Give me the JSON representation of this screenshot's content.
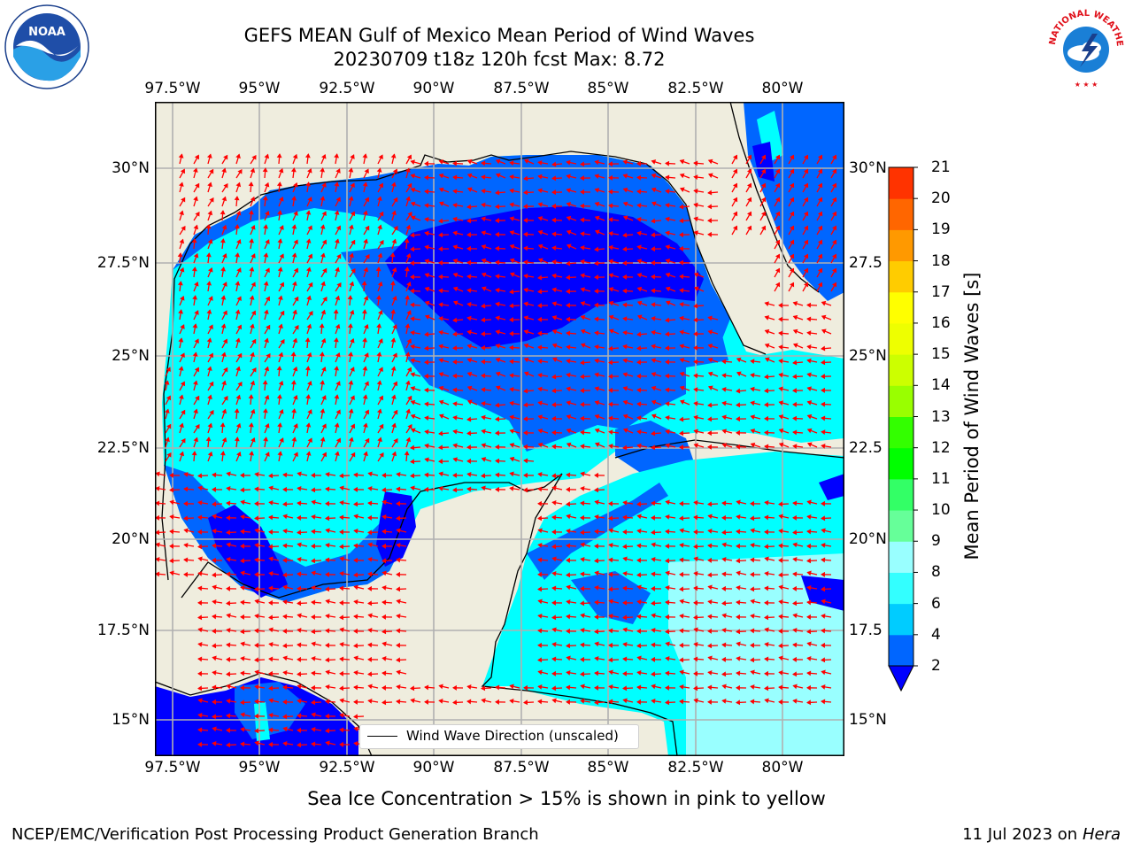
{
  "title": {
    "line1": "GEFS MEAN Gulf of Mexico Mean Period of Wind Waves",
    "line2": "20230709 t18z 120h fcst   Max: 8.72"
  },
  "logos": {
    "left": "noaa-logo",
    "right": "national-weather-service-logo",
    "right_text": "NATIONAL WEATHER SERVICE"
  },
  "map": {
    "lon_ticks": [
      "97.5°W",
      "95°W",
      "92.5°W",
      "90°W",
      "87.5°W",
      "85°W",
      "82.5°W",
      "80°W"
    ],
    "lat_ticks_left": [
      "30°N",
      "27.5°N",
      "25°N",
      "22.5°N",
      "20°N",
      "17.5°N",
      "15°N"
    ],
    "lat_ticks_right": [
      "30°N",
      "27.5",
      "25°N",
      "22.5",
      "20°N",
      "17.5",
      "15°N"
    ],
    "land_color": "#efedde",
    "grid_color": "#b0b0b0",
    "arrow_color": "#ff0000"
  },
  "legend": {
    "label": "Wind Wave Direction (unscaled)"
  },
  "colorbar": {
    "label": "Mean Period of Wind Waves [s]",
    "ticks": [
      "2",
      "4",
      "6",
      "8",
      "9",
      "10",
      "11",
      "12",
      "13",
      "14",
      "15",
      "16",
      "17",
      "18",
      "19",
      "20",
      "21"
    ],
    "colors": [
      "#0066ff",
      "#00ccff",
      "#33ffff",
      "#99ffff",
      "#66ff99",
      "#33ff66",
      "#00ff00",
      "#33ff00",
      "#99ff00",
      "#ccff00",
      "#eeff00",
      "#ffff00",
      "#ffcc00",
      "#ff9900",
      "#ff6600",
      "#ff3300",
      "#ff0000"
    ],
    "underflow_color": "#0000ff"
  },
  "note": "Sea Ice Concentration > 15% is shown in pink to yellow",
  "footer": {
    "left": "NCEP/EMC/Verification Post Processing Product Generation Branch",
    "right_prefix": "11 Jul 2023 on ",
    "right_machine": "Hera"
  }
}
